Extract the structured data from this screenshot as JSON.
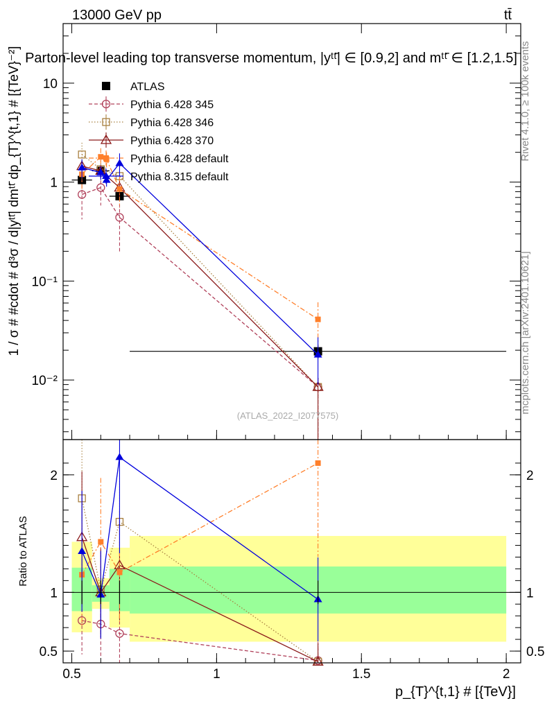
{
  "header": {
    "beam": "13000 GeV pp",
    "process": "tt̄",
    "plot_title": "Parton-level leading top transverse momentum, |yᵗᵗ̄| ∈ [0.9,2] and mᵗᵗ̄ ∈ [1.2,1.5]",
    "watermark": "(ATLAS_2022_I2077575)"
  },
  "side_labels": {
    "rivet": "Rivet 4.1.0, ≥ 100k events",
    "mcplots": "mcplots.cern.ch [arXiv:2401.10621]"
  },
  "colors": {
    "atlas": "#000000",
    "py6_345": "#b0405a",
    "py6_346": "#a88040",
    "py6_370": "#8b1a1a",
    "py6_default": "#ff7f2a",
    "py8_default": "#0000dd",
    "band_inner": "#99ff99",
    "band_outer": "#ffff99"
  },
  "chart_data": [
    {
      "type": "line",
      "panel": "main",
      "ylabel": "1 / σ # #cdot # d³σ / d|yᵗᵗ̄| dmᵗᵗ̄ dp_{T}^{t,1} # [{TeV}⁻²]",
      "yscale": "log",
      "xlim": [
        0.47,
        2.05
      ],
      "ylim": [
        0.0025,
        40
      ],
      "y_ticks": [
        {
          "value": 0.01,
          "label": "10⁻²"
        },
        {
          "value": 0.1,
          "label": "10⁻¹"
        },
        {
          "value": 1,
          "label": "1"
        },
        {
          "value": 10,
          "label": "10"
        }
      ],
      "legend_position": "top-left",
      "series": [
        {
          "key": "atlas",
          "name": "ATLAS",
          "style": "data",
          "marker": "square-filled",
          "x": [
            0.535,
            0.6,
            0.665,
            1.35
          ],
          "y": [
            1.05,
            1.3,
            0.72,
            0.0195
          ],
          "yerr": [
            0.1,
            0.08,
            0.07,
            0.003
          ],
          "xerr": [
            0.035,
            0.03,
            0.035,
            0.65
          ]
        },
        {
          "key": "py6_345",
          "name": "Pythia 6.428 345",
          "dash": "5,3",
          "marker": "circle-open",
          "x": [
            0.535,
            0.6,
            0.665,
            1.35
          ],
          "y": [
            0.75,
            0.88,
            0.44,
            0.0085
          ],
          "yerr_lo": [
            0.33,
            0.3,
            0.25,
            0.0085
          ],
          "yerr_hi": [
            0.33,
            0.3,
            0.25,
            0.002
          ]
        },
        {
          "key": "py6_346",
          "name": "Pythia 6.428 346",
          "dash": "1.5,2.5",
          "marker": "square-open",
          "x": [
            0.535,
            0.6,
            0.665,
            1.35
          ],
          "y": [
            1.9,
            1.35,
            1.15,
            0.0085
          ],
          "yerr_lo": [
            0.4,
            0.3,
            0.3,
            0.0085
          ],
          "yerr_hi": [
            0.6,
            0.3,
            0.3,
            0.002
          ]
        },
        {
          "key": "py6_370",
          "name": "Pythia 6.428 370",
          "dash": "",
          "marker": "triangle-open",
          "x": [
            0.535,
            0.6,
            0.665,
            1.35
          ],
          "y": [
            1.45,
            1.3,
            0.88,
            0.0085
          ],
          "yerr_lo": [
            0.2,
            0.2,
            0.2,
            0.0085
          ],
          "yerr_hi": [
            0.2,
            0.2,
            0.2,
            0.002
          ]
        },
        {
          "key": "py6_default",
          "name": "Pythia 6.428 default",
          "dash": "7,3,2,3",
          "marker": "square-filled-small",
          "x": [
            0.535,
            0.6,
            0.62,
            0.665,
            1.35
          ],
          "y": [
            1.2,
            1.8,
            1.7,
            0.85,
            0.041
          ],
          "yerr_lo": [
            0.35,
            0.4,
            0.3,
            0.3,
            0.02
          ],
          "yerr_hi": [
            0.35,
            0.4,
            0.3,
            0.3,
            0.02
          ]
        },
        {
          "key": "py8_default",
          "name": "Pythia 8.315 default",
          "dash": "",
          "marker": "triangle-filled",
          "x": [
            0.535,
            0.6,
            0.62,
            0.665,
            1.35
          ],
          "y": [
            1.4,
            1.25,
            1.05,
            1.55,
            0.018
          ],
          "yerr_lo": [
            0.3,
            0.2,
            0.15,
            0.4,
            0.009
          ],
          "yerr_hi": [
            0.3,
            0.2,
            0.15,
            0.4,
            0.009
          ]
        }
      ]
    },
    {
      "type": "line",
      "panel": "ratio",
      "ylabel": "Ratio to ATLAS",
      "xlabel": "p_{T}^{t,1} # [{TeV}]",
      "xlim": [
        0.47,
        2.05
      ],
      "ylim": [
        0.4,
        2.3
      ],
      "x_ticks": [
        {
          "value": 0.5,
          "label": "0.5"
        },
        {
          "value": 1,
          "label": "1"
        },
        {
          "value": 1.5,
          "label": "1.5"
        },
        {
          "value": 2,
          "label": "2"
        }
      ],
      "y_ticks": [
        {
          "value": 0.5,
          "label": "0.5"
        },
        {
          "value": 1,
          "label": "1"
        },
        {
          "value": 2,
          "label": "2"
        }
      ],
      "bands": [
        {
          "x0": 0.5,
          "x1": 0.57,
          "inner": [
            0.84,
            1.21
          ],
          "outer": [
            0.66,
            1.43
          ]
        },
        {
          "x0": 0.57,
          "x1": 0.63,
          "inner": [
            0.92,
            1.06
          ],
          "outer": [
            0.86,
            1.12
          ]
        },
        {
          "x0": 0.63,
          "x1": 0.7,
          "inner": [
            0.84,
            1.2
          ],
          "outer": [
            0.7,
            1.38
          ]
        },
        {
          "x0": 0.7,
          "x1": 2.0,
          "inner": [
            0.82,
            1.22
          ],
          "outer": [
            0.58,
            1.48
          ]
        }
      ],
      "series": [
        {
          "key": "py6_345",
          "x": [
            0.535,
            0.6,
            0.665,
            1.35
          ],
          "y": [
            0.76,
            0.73,
            0.65,
            0.42
          ]
        },
        {
          "key": "py6_346",
          "x": [
            0.535,
            0.6,
            0.665,
            1.35
          ],
          "y": [
            1.8,
            1.02,
            1.6,
            0.41
          ]
        },
        {
          "key": "py6_370",
          "x": [
            0.535,
            0.6,
            0.665,
            1.35
          ],
          "y": [
            1.47,
            1.0,
            1.23,
            0.41
          ]
        },
        {
          "key": "py6_default",
          "x": [
            0.535,
            0.6,
            0.665,
            1.35
          ],
          "y": [
            1.15,
            1.43,
            1.17,
            2.1
          ]
        },
        {
          "key": "py8_default",
          "x": [
            0.535,
            0.6,
            0.665,
            1.35
          ],
          "y": [
            1.35,
            0.98,
            2.15,
            0.94
          ]
        }
      ]
    }
  ]
}
